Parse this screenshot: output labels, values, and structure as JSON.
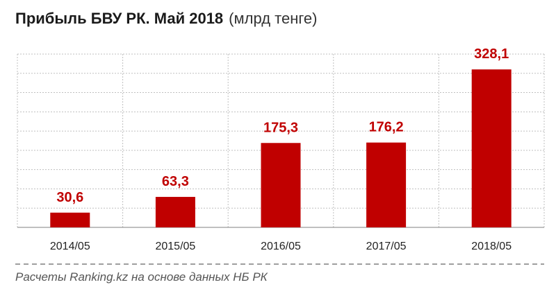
{
  "chart_data": {
    "type": "bar",
    "title": "Прибыль БВУ РК. Май 2018",
    "unit": "(млрд тенге)",
    "categories": [
      "2014/05",
      "2015/05",
      "2016/05",
      "2017/05",
      "2018/05"
    ],
    "values": [
      30.6,
      63.3,
      175.3,
      176.2,
      328.1
    ],
    "value_labels": [
      "30,6",
      "63,3",
      "175,3",
      "176,2",
      "328,1"
    ],
    "xlabel": "",
    "ylabel": "",
    "ylim": [
      0,
      360
    ],
    "grid": true,
    "colors": {
      "bar": "#c00000",
      "label": "#c00000",
      "grid": "#bfbfbf",
      "axis": "#7f7f7f"
    }
  },
  "footer": {
    "source": "Расчеты Ranking.kz на основе данных НБ РК"
  }
}
